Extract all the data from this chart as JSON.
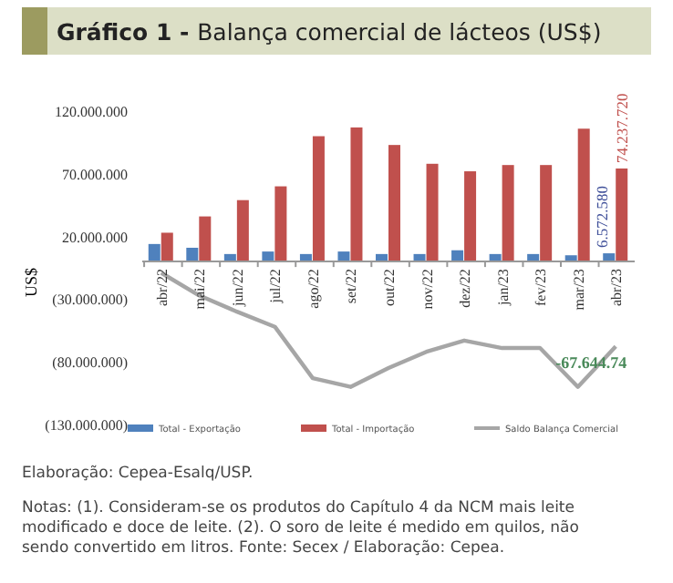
{
  "chart_data": {
    "type": "bar",
    "title": "Gráfico 1 - Balança comercial de lácteos (US$)",
    "ylabel": "US$",
    "categories": [
      "abr/22",
      "mai/22",
      "jun/22",
      "jul/22",
      "ago/22",
      "set/22",
      "out/22",
      "nov/22",
      "dez/22",
      "jan/23",
      "fev/23",
      "mar/23",
      "abr/23"
    ],
    "series": [
      {
        "name": "Total - Exportação",
        "color": "#4f81bd",
        "values": [
          14000000,
          11000000,
          6000000,
          8000000,
          6000000,
          8000000,
          6000000,
          6000000,
          9000000,
          6000000,
          6000000,
          5000000,
          6572580
        ],
        "value_labels": [
          null,
          null,
          null,
          null,
          null,
          null,
          null,
          null,
          null,
          null,
          null,
          null,
          "6.572.580"
        ]
      },
      {
        "name": "Total - Importação",
        "color": "#c0504d",
        "values": [
          23000000,
          36000000,
          49000000,
          60000000,
          100000000,
          107000000,
          93000000,
          78000000,
          72000000,
          77000000,
          77000000,
          106000000,
          74237720
        ],
        "value_labels": [
          null,
          null,
          null,
          null,
          null,
          null,
          null,
          null,
          null,
          null,
          null,
          null,
          "74.237.720"
        ]
      },
      {
        "name": "Saldo Balança Comercial",
        "type": "line",
        "color": "#a6a6a6",
        "values": [
          -9000000,
          -27000000,
          -40000000,
          -52000000,
          -93000000,
          -100000000,
          -85000000,
          -72000000,
          -63000000,
          -69000000,
          -69000000,
          -100000000,
          -67644740
        ],
        "value_labels": [
          null,
          null,
          null,
          null,
          null,
          null,
          null,
          null,
          null,
          null,
          null,
          null,
          "-67.644.74"
        ]
      }
    ],
    "ylim": [
      -130000000,
      120000000
    ],
    "yticks": [
      {
        "value": 120000000,
        "label": "120.000.000"
      },
      {
        "value": 70000000,
        "label": "70.000.000"
      },
      {
        "value": 20000000,
        "label": "20.000.000"
      },
      {
        "value": -30000000,
        "label": "(30.000.000)"
      },
      {
        "value": -80000000,
        "label": "(80.000.000)"
      },
      {
        "value": -130000000,
        "label": "(130.000.000)"
      }
    ],
    "grid": false,
    "legend": "bottom",
    "marker": "none",
    "annotations": [
      "Elaboração: Cepea-Esalq/USP.",
      "Notas: (1). Consideram-se os produtos do Capítulo 4 da NCM mais leite modificado e doce de leite.  (2). O soro de leite é medido em quilos, não sendo convertido em litros. Fonte: Secex / Elaboração: Cepea."
    ]
  }
}
